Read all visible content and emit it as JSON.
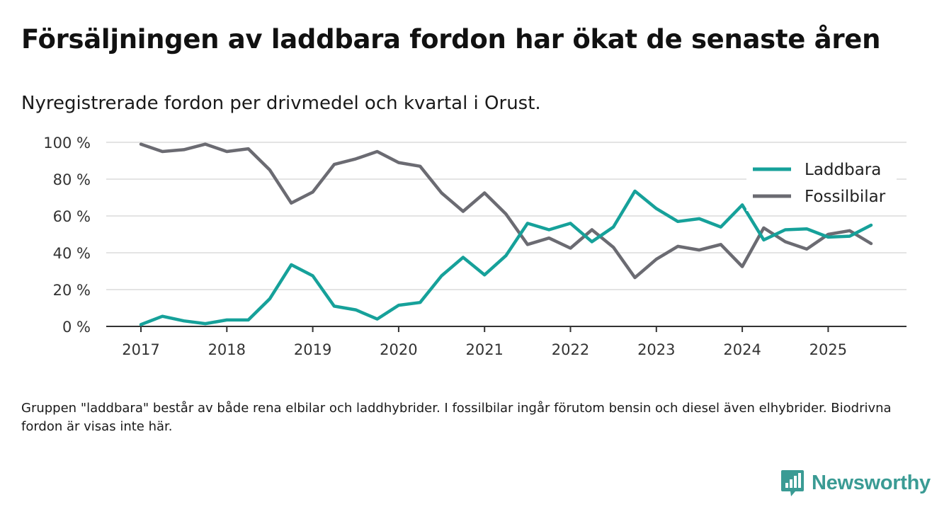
{
  "title": "Försäljningen av laddbara fordon har ökat de senaste åren",
  "subtitle": "Nyregistrerade fordon per drivmedel och kvartal i Orust.",
  "footnote": "Gruppen \"laddbara\" består av både rena elbilar och laddhybrider. I fossilbilar ingår förutom bensin och diesel även elhybrider. Biodrivna fordon är visas inte här.",
  "brand": {
    "name": "Newsworthy",
    "icon": "newsworthy-logo-icon",
    "color": "#3a9b94"
  },
  "chart_data": {
    "type": "line",
    "title": "Försäljningen av laddbara fordon har ökat de senaste åren",
    "xlabel": "",
    "ylabel": "",
    "ylim": [
      0,
      100
    ],
    "xlim": [
      2017,
      2026
    ],
    "y_ticks": [
      0,
      20,
      40,
      60,
      80,
      100
    ],
    "y_tick_labels": [
      "0 %",
      "20 %",
      "40 %",
      "60 %",
      "80 %",
      "100 %"
    ],
    "x_ticks": [
      2017,
      2018,
      2019,
      2020,
      2021,
      2022,
      2023,
      2024,
      2025
    ],
    "x_tick_labels": [
      "2017",
      "2018",
      "2019",
      "2020",
      "2021",
      "2022",
      "2023",
      "2024",
      "2025"
    ],
    "grid": true,
    "legend_position": "top-right",
    "x": [
      2017.0,
      2017.25,
      2017.5,
      2017.75,
      2018.0,
      2018.25,
      2018.5,
      2018.75,
      2019.0,
      2019.25,
      2019.5,
      2019.75,
      2020.0,
      2020.25,
      2020.5,
      2020.75,
      2021.0,
      2021.25,
      2021.5,
      2021.75,
      2022.0,
      2022.25,
      2022.5,
      2022.75,
      2023.0,
      2023.25,
      2023.5,
      2023.75,
      2024.0,
      2024.25,
      2024.5,
      2024.75,
      2025.0,
      2025.25,
      2025.5
    ],
    "series": [
      {
        "name": "Laddbara",
        "color": "#16a19a",
        "values": [
          1,
          5.5,
          3,
          1.5,
          3.5,
          3.5,
          15,
          33.5,
          27.5,
          11,
          9,
          4,
          11.5,
          13,
          27.5,
          37.5,
          28,
          38.5,
          56,
          52.5,
          56,
          46,
          54,
          73.5,
          64,
          57,
          58.5,
          54,
          66,
          47,
          52.5,
          53,
          48.5,
          49,
          55
        ]
      },
      {
        "name": "Fossilbilar",
        "color": "#6b6b72",
        "values": [
          99,
          95,
          96,
          99,
          95,
          96.5,
          85,
          67,
          73,
          88,
          91,
          95,
          89,
          87,
          72.5,
          62.5,
          72.5,
          61,
          44.5,
          48,
          42.5,
          52.5,
          43,
          26.5,
          36.5,
          43.5,
          41.5,
          44.5,
          32.5,
          53.5,
          46,
          42,
          50,
          52,
          45
        ]
      }
    ]
  }
}
